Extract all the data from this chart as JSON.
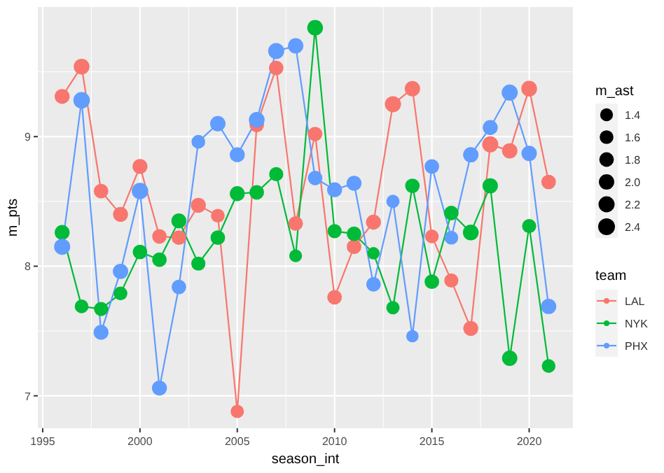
{
  "chart_data": {
    "type": "bubble",
    "xlabel": "season_int",
    "ylabel": "m_pts",
    "legend_title": "team",
    "annotations": [
      "m_ast"
    ],
    "x": [
      1996,
      1997,
      1998,
      1999,
      2000,
      2001,
      2002,
      2003,
      2004,
      2005,
      2006,
      2007,
      2008,
      2009,
      2010,
      2011,
      2012,
      2013,
      2014,
      2015,
      2016,
      2017,
      2018,
      2019,
      2020,
      2021
    ],
    "xlim": [
      1994.75,
      2022.25
    ],
    "xticks": [
      1995,
      2000,
      2005,
      2010,
      2015,
      2020
    ],
    "ylim": [
      6.75,
      10.0
    ],
    "yticks": [
      7,
      8,
      9
    ],
    "grid": true,
    "legend": "right",
    "line_style": "solid",
    "size_legend": [
      1.4,
      1.6,
      1.8,
      {
        "value": 2,
        "label": "2.0"
      },
      2.2,
      2.4
    ],
    "series": [
      {
        "type": "line",
        "marker": "none",
        "color": "#f8766d",
        "values": [
          9.31,
          9.54,
          8.58,
          8.4,
          8.77,
          8.23,
          8.22,
          8.47,
          8.39,
          6.88,
          9.09,
          9.53,
          8.33,
          9.02,
          7.76,
          8.15,
          8.34,
          9.25,
          9.37,
          8.23,
          7.89,
          7.52,
          8.94,
          8.89,
          9.37,
          8.65
        ]
      },
      {
        "type": "line",
        "marker": "none",
        "color": "#00ba38",
        "values": [
          8.26,
          7.69,
          7.67,
          7.79,
          8.11,
          8.05,
          8.35,
          8.02,
          8.22,
          8.56,
          8.57,
          8.71,
          8.08,
          9.84,
          8.27,
          8.25,
          8.1,
          7.68,
          8.62,
          7.88,
          8.41,
          8.26,
          8.62,
          7.29,
          8.31,
          7.23
        ]
      },
      {
        "type": "line",
        "marker": "none",
        "color": "#619cff",
        "values": [
          8.15,
          9.28,
          7.49,
          7.96,
          8.58,
          7.06,
          7.84,
          8.96,
          9.1,
          8.86,
          9.13,
          9.66,
          9.7,
          8.68,
          8.59,
          8.64,
          7.86,
          8.5,
          7.46,
          8.77,
          8.22,
          8.86,
          9.07,
          9.34,
          8.87,
          7.69
        ]
      },
      {
        "name": "LAL",
        "marker": "circle",
        "color": "#f8766d",
        "values": [
          9.31,
          9.54,
          8.58,
          8.4,
          8.77,
          8.23,
          8.22,
          8.47,
          8.39,
          6.88,
          9.09,
          9.53,
          8.33,
          9.02,
          7.76,
          8.15,
          8.34,
          9.25,
          9.37,
          8.23,
          7.89,
          7.52,
          8.94,
          8.89,
          9.37,
          8.65
        ],
        "sizes": [
          1.9,
          2.1,
          1.8,
          1.9,
          1.9,
          1.8,
          1.8,
          1.9,
          1.6,
          1.5,
          1.8,
          1.8,
          1.8,
          1.8,
          1.8,
          1.8,
          1.9,
          2.2,
          2.0,
          1.6,
          1.7,
          1.9,
          2.2,
          2.0,
          2.1,
          1.8
        ]
      },
      {
        "name": "NYK",
        "marker": "circle",
        "color": "#00ba38",
        "values": [
          8.26,
          7.69,
          7.67,
          7.79,
          8.11,
          8.05,
          8.35,
          8.02,
          8.22,
          8.56,
          8.57,
          8.71,
          8.08,
          9.84,
          8.27,
          8.25,
          8.1,
          7.68,
          8.62,
          7.88,
          8.41,
          8.26,
          8.62,
          7.29,
          8.31,
          7.23
        ],
        "sizes": [
          1.9,
          1.6,
          1.7,
          1.6,
          1.8,
          1.8,
          1.9,
          1.7,
          1.8,
          1.9,
          1.8,
          1.7,
          1.4,
          2.1,
          1.7,
          1.8,
          1.3,
          1.5,
          1.8,
          1.8,
          1.8,
          2.1,
          2.0,
          2.0,
          1.7,
          1.6
        ]
      },
      {
        "name": "PHX",
        "marker": "circle",
        "color": "#619cff",
        "values": [
          8.15,
          9.28,
          7.49,
          7.96,
          8.58,
          7.06,
          7.84,
          8.96,
          9.1,
          8.86,
          9.13,
          9.66,
          9.7,
          8.68,
          8.59,
          8.64,
          7.86,
          8.5,
          7.46,
          8.77,
          8.22,
          8.86,
          9.07,
          9.34,
          8.87,
          7.69
        ],
        "sizes": [
          2.2,
          2.3,
          1.9,
          2.0,
          2.3,
          1.9,
          1.8,
          1.6,
          2.0,
          1.9,
          2.1,
          2.2,
          2.0,
          1.8,
          1.9,
          1.9,
          1.8,
          1.5,
          1.3,
          1.8,
          1.6,
          2.0,
          1.9,
          2.2,
          2.0,
          2.0
        ]
      }
    ]
  }
}
